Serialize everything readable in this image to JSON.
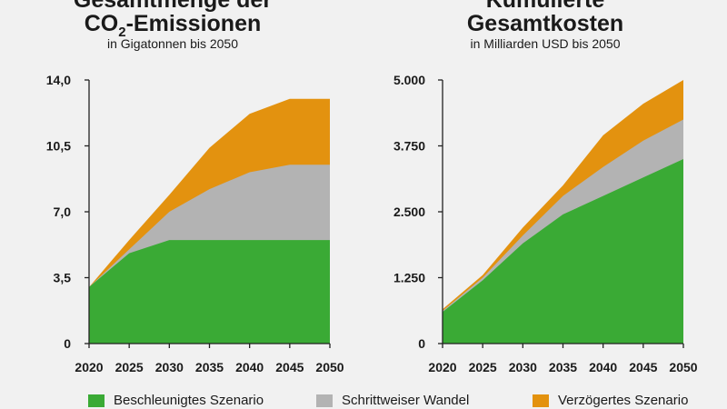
{
  "colors": {
    "accelerated": "#3aaa35",
    "gradual": "#b3b3b3",
    "delayed": "#e3920f",
    "axis": "#222222"
  },
  "legend": [
    {
      "label": "Beschleunigtes Szenario",
      "color": "#3aaa35"
    },
    {
      "label": "Schrittweiser Wandel",
      "color": "#b3b3b3"
    },
    {
      "label": "Verzögertes Szenario",
      "color": "#e3920f"
    }
  ],
  "chart_data": [
    {
      "type": "area",
      "stacked": true,
      "title_line1": "Gesamtmenge der",
      "title_line2_pre": "CO",
      "title_line2_sub": "2",
      "title_line2_post": "-Emissionen",
      "subtitle": "in Gigatonnen bis 2050",
      "x_ticks": [
        "2020",
        "2025",
        "2030",
        "2035",
        "2040",
        "2045",
        "2050"
      ],
      "y_ticks": [
        "0",
        "3,5",
        "7,0",
        "10,5",
        "14,0"
      ],
      "ylim": [
        0,
        14
      ],
      "x": [
        2020,
        2025,
        2030,
        2035,
        2040,
        2045,
        2050
      ],
      "series": [
        {
          "name": "Beschleunigtes Szenario",
          "values": [
            3.0,
            4.8,
            5.5,
            5.5,
            5.5,
            5.5,
            5.5
          ]
        },
        {
          "name": "Schrittweiser Wandel",
          "values": [
            3.0,
            5.0,
            7.0,
            8.2,
            9.1,
            9.5,
            9.5
          ]
        },
        {
          "name": "Verzögertes Szenario",
          "values": [
            3.0,
            5.5,
            7.9,
            10.4,
            12.2,
            13.0,
            13.0
          ]
        }
      ]
    },
    {
      "type": "area",
      "stacked": true,
      "title_line1": "Kumulierte",
      "title_line2_pre": "Gesamtkosten",
      "title_line2_sub": "",
      "title_line2_post": "",
      "subtitle": "in Milliarden USD bis 2050",
      "x_ticks": [
        "2020",
        "2025",
        "2030",
        "2035",
        "2040",
        "2045",
        "2050"
      ],
      "y_ticks": [
        "0",
        "1.250",
        "2.500",
        "3.750",
        "5.000"
      ],
      "ylim": [
        0,
        5000
      ],
      "x": [
        2020,
        2025,
        2030,
        2035,
        2040,
        2045,
        2050
      ],
      "series": [
        {
          "name": "Beschleunigtes Szenario",
          "values": [
            600,
            1200,
            1900,
            2450,
            2800,
            3150,
            3500
          ]
        },
        {
          "name": "Schrittweiser Wandel",
          "values": [
            620,
            1250,
            2050,
            2800,
            3350,
            3850,
            4250
          ]
        },
        {
          "name": "Verzögertes Szenario",
          "values": [
            650,
            1300,
            2200,
            3000,
            3950,
            4550,
            5000
          ]
        }
      ]
    }
  ]
}
